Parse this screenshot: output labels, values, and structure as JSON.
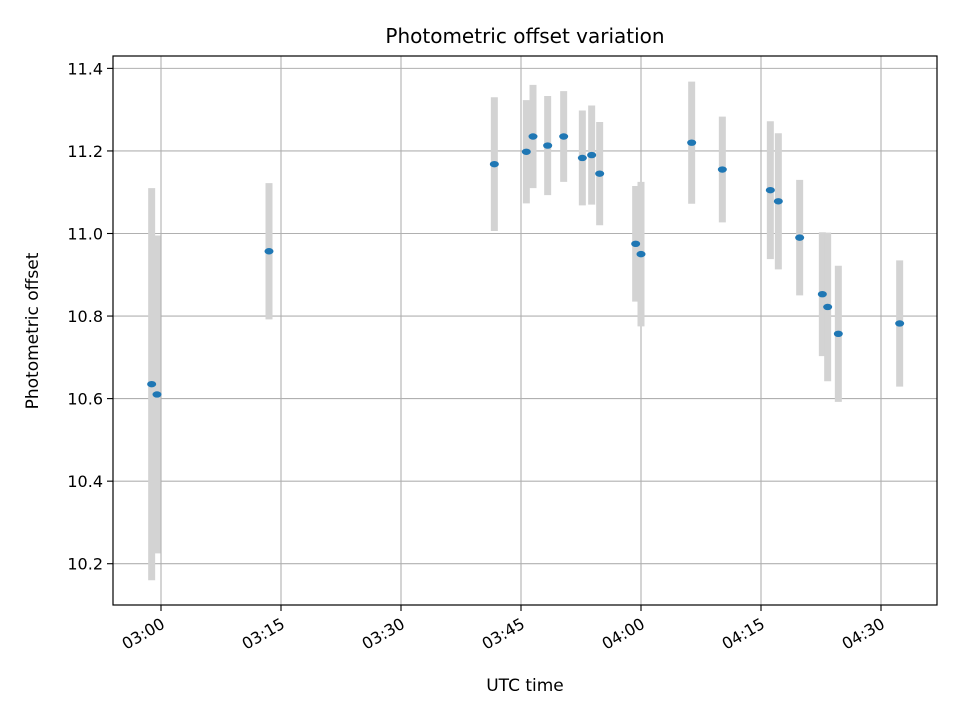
{
  "chart_data": {
    "type": "scatter",
    "title": "Photometric offset variation",
    "xlabel": "UTC time",
    "ylabel": "Photometric offset",
    "xlim": [
      "02:54",
      "04:37"
    ],
    "ylim": [
      10.1,
      11.43
    ],
    "grid": true,
    "x_ticks": [
      "03:00",
      "03:15",
      "03:30",
      "03:45",
      "04:00",
      "04:15",
      "04:30"
    ],
    "y_ticks": [
      10.2,
      10.4,
      10.6,
      10.8,
      11.0,
      11.2,
      11.4
    ],
    "y_tick_labels": [
      "10.2",
      "10.4",
      "10.6",
      "10.8",
      "11.0",
      "11.2",
      "11.4"
    ],
    "colors": {
      "point": "#1f77b4",
      "errorbar": "#d3d3d3",
      "grid": "#b0b0b0"
    },
    "points": [
      {
        "x": "02:58:50",
        "y": 10.635,
        "err": 0.475
      },
      {
        "x": "02:59:30",
        "y": 10.61,
        "err": 0.385
      },
      {
        "x": "03:13:30",
        "y": 10.957,
        "err": 0.165
      },
      {
        "x": "03:41:40",
        "y": 11.168,
        "err": 0.162
      },
      {
        "x": "03:45:40",
        "y": 11.198,
        "err": 0.125
      },
      {
        "x": "03:46:30",
        "y": 11.235,
        "err": 0.125
      },
      {
        "x": "03:48:20",
        "y": 11.213,
        "err": 0.12
      },
      {
        "x": "03:50:20",
        "y": 11.235,
        "err": 0.11
      },
      {
        "x": "03:52:40",
        "y": 11.183,
        "err": 0.115
      },
      {
        "x": "03:53:50",
        "y": 11.19,
        "err": 0.12
      },
      {
        "x": "03:54:50",
        "y": 11.145,
        "err": 0.125
      },
      {
        "x": "03:59:20",
        "y": 10.975,
        "err": 0.14
      },
      {
        "x": "04:00:00",
        "y": 10.95,
        "err": 0.175
      },
      {
        "x": "04:06:20",
        "y": 11.22,
        "err": 0.148
      },
      {
        "x": "04:10:10",
        "y": 11.155,
        "err": 0.128
      },
      {
        "x": "04:16:10",
        "y": 11.105,
        "err": 0.167
      },
      {
        "x": "04:17:10",
        "y": 11.078,
        "err": 0.165
      },
      {
        "x": "04:19:50",
        "y": 10.99,
        "err": 0.14
      },
      {
        "x": "04:22:40",
        "y": 10.853,
        "err": 0.15
      },
      {
        "x": "04:23:20",
        "y": 10.822,
        "err": 0.18
      },
      {
        "x": "04:24:40",
        "y": 10.757,
        "err": 0.165
      },
      {
        "x": "04:32:20",
        "y": 10.782,
        "err": 0.153
      }
    ]
  }
}
